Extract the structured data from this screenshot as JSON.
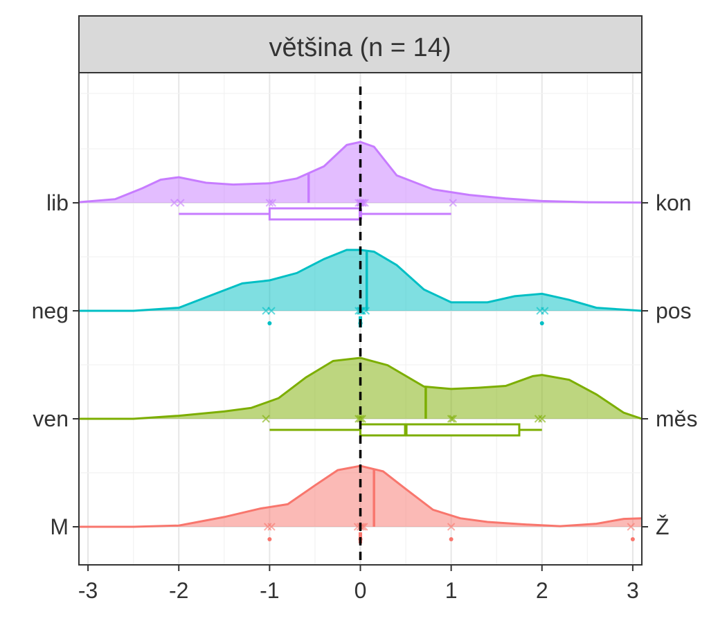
{
  "chart_data": {
    "type": "ridgeline",
    "title": "většina (n = 14)",
    "xlim": [
      -3.1,
      3.1
    ],
    "x_ticks": [
      "-3",
      "-2",
      "-1",
      "0",
      "1",
      "2",
      "3"
    ],
    "x_tick_values": [
      -3,
      -2,
      -1,
      0,
      1,
      2,
      3
    ],
    "reference_line_x": 0,
    "grid": true,
    "series": [
      {
        "left_label": "lib",
        "right_label": "kon",
        "color": "#C77CFF",
        "mean": -0.57,
        "density_x": [
          -3.1,
          -2.7,
          -2.4,
          -2.2,
          -2.0,
          -1.7,
          -1.4,
          -1.0,
          -0.7,
          -0.4,
          -0.15,
          0.0,
          0.15,
          0.4,
          0.8,
          1.2,
          1.6,
          2.0,
          2.5,
          3.1
        ],
        "density_y": [
          0.01,
          0.06,
          0.24,
          0.38,
          0.42,
          0.33,
          0.3,
          0.32,
          0.4,
          0.6,
          0.95,
          1.0,
          0.92,
          0.45,
          0.22,
          0.13,
          0.07,
          0.03,
          0.01,
          0.005
        ],
        "points": [
          -2.05,
          -1.98,
          -1.0,
          -0.97,
          -0.02,
          0.0,
          0.0,
          0.02,
          0.03,
          0.05,
          1.02
        ],
        "outliers": [],
        "box": {
          "whisker_low": -2.0,
          "q1": -1.0,
          "median": 0.0,
          "q3": 0.0,
          "whisker_high": 1.0
        }
      },
      {
        "left_label": "neg",
        "right_label": "pos",
        "color": "#00BFC4",
        "mean": 0.07,
        "density_x": [
          -3.1,
          -2.5,
          -2.0,
          -1.6,
          -1.3,
          -1.0,
          -0.7,
          -0.4,
          -0.15,
          0.0,
          0.15,
          0.4,
          0.7,
          1.0,
          1.4,
          1.7,
          2.0,
          2.3,
          2.6,
          3.1
        ],
        "density_y": [
          0.0,
          0.0,
          0.05,
          0.28,
          0.45,
          0.5,
          0.62,
          0.85,
          1.0,
          1.0,
          0.97,
          0.75,
          0.35,
          0.14,
          0.14,
          0.24,
          0.28,
          0.18,
          0.05,
          0.0
        ],
        "points": [
          -1.04,
          -0.98,
          -0.02,
          0.0,
          0.01,
          0.02,
          0.06,
          1.98,
          2.03
        ],
        "outliers": [
          -1.0,
          0.0,
          0.0,
          0.0,
          0.0,
          0.0,
          2.0
        ],
        "box": {
          "whisker_low": 0.0,
          "q1": 0.0,
          "median": 0.0,
          "q3": 0.0,
          "whisker_high": 0.0
        }
      },
      {
        "left_label": "ven",
        "right_label": "měs",
        "color": "#7CAE00",
        "mean": 0.72,
        "density_x": [
          -3.1,
          -2.5,
          -2.0,
          -1.5,
          -1.2,
          -0.9,
          -0.6,
          -0.3,
          0.0,
          0.3,
          0.7,
          1.0,
          1.3,
          1.6,
          1.9,
          2.0,
          2.3,
          2.6,
          2.9,
          3.1
        ],
        "density_y": [
          0.0,
          0.0,
          0.05,
          0.12,
          0.18,
          0.34,
          0.68,
          0.95,
          1.0,
          0.88,
          0.53,
          0.49,
          0.51,
          0.54,
          0.7,
          0.72,
          0.64,
          0.4,
          0.1,
          0.0
        ],
        "points": [
          -1.04,
          -0.02,
          0.0,
          0.02,
          1.0,
          1.02,
          1.96,
          2.0
        ],
        "outliers": [],
        "box": {
          "whisker_low": -1.0,
          "q1": 0.0,
          "median": 0.5,
          "q3": 1.75,
          "whisker_high": 2.0
        }
      },
      {
        "left_label": "M",
        "right_label": "Ž",
        "color": "#F8766D",
        "mean": 0.15,
        "density_x": [
          -3.1,
          -2.5,
          -2.0,
          -1.5,
          -1.1,
          -0.8,
          -0.5,
          -0.25,
          0.0,
          0.25,
          0.5,
          0.8,
          1.1,
          1.4,
          1.8,
          2.2,
          2.6,
          2.9,
          3.1
        ],
        "density_y": [
          0.0,
          0.0,
          0.02,
          0.16,
          0.3,
          0.37,
          0.68,
          0.93,
          1.0,
          0.91,
          0.62,
          0.28,
          0.14,
          0.08,
          0.04,
          0.01,
          0.05,
          0.13,
          0.14
        ],
        "points": [
          -1.02,
          -0.98,
          -0.03,
          0.0,
          0.02,
          0.04,
          1.0,
          2.98
        ],
        "outliers": [
          -1.0,
          0.0,
          0.0,
          0.0,
          0.0,
          1.0,
          3.0
        ],
        "box": {
          "whisker_low": 0.0,
          "q1": 0.0,
          "median": 0.0,
          "q3": 0.0,
          "whisker_high": 0.0
        }
      }
    ]
  }
}
